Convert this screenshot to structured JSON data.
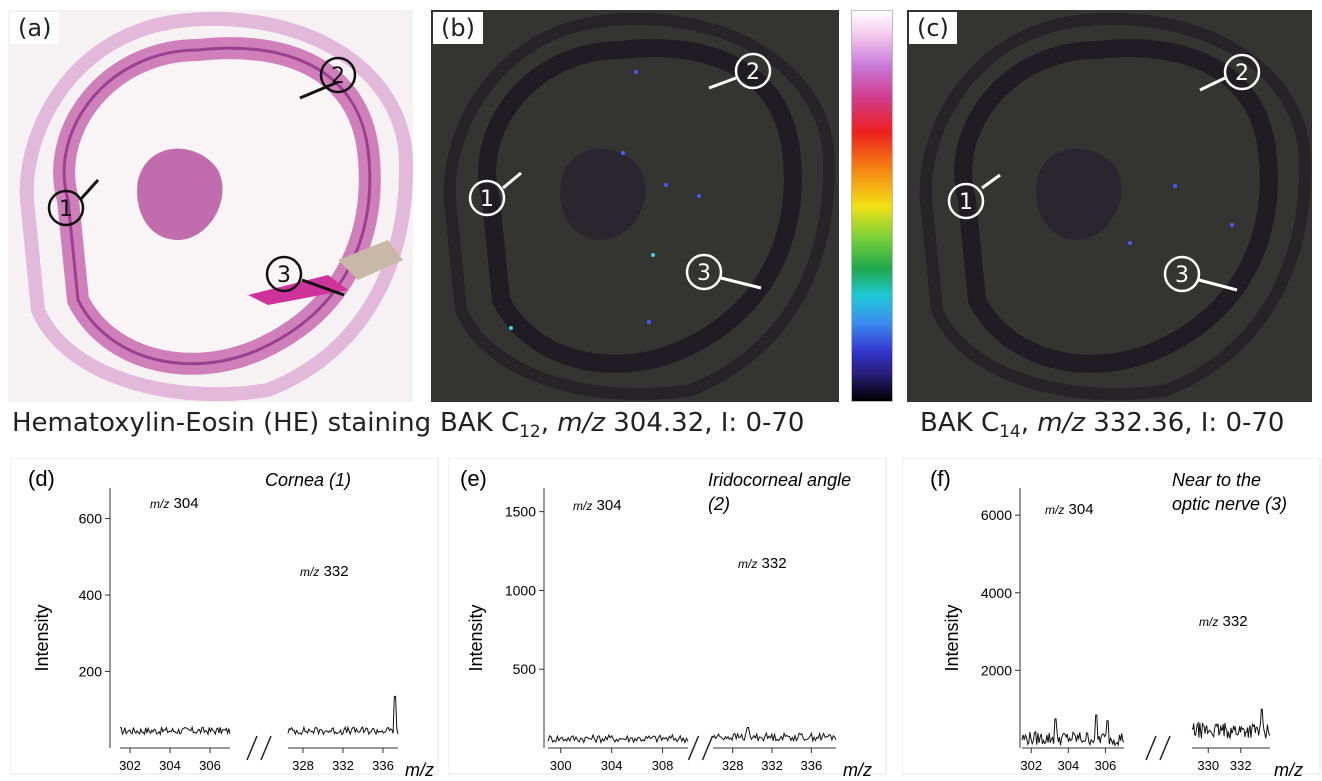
{
  "panels": {
    "a": {
      "label": "(a)",
      "caption": "Hematoxylin-Eosin (HE) staining"
    },
    "b": {
      "label": "(b)",
      "caption_pre": "BAK C",
      "caption_sub": "12",
      "caption_mz": "m/z",
      "caption_post": " 304.32, I: 0-70"
    },
    "c": {
      "label": "(c)",
      "caption_pre": "BAK C",
      "caption_sub": "14",
      "caption_mz": "m/z",
      "caption_post": " 332.36, I: 0-70"
    }
  },
  "regions": [
    "1",
    "2",
    "3"
  ],
  "colorbar": {
    "colors": [
      "#ffffff",
      "#c87ad8",
      "#ee2020",
      "#f3e013",
      "#1ea84a",
      "#1ec8d6",
      "#3338d0",
      "#000000"
    ]
  },
  "chart_data": [
    {
      "type": "line",
      "panel": "(d)",
      "annotation": "Cornea (1)",
      "ylabel": "Intensity",
      "xlabel": "m/z",
      "yticks": [
        200,
        400,
        600
      ],
      "ylim": [
        0,
        680
      ],
      "peak_labels": [
        {
          "prefix": "m/z",
          "text": " 304"
        },
        {
          "prefix": "m/z",
          "text": " 332"
        }
      ],
      "segments": [
        {
          "xticks": [
            "302",
            "304",
            "306"
          ],
          "xlim": [
            301.5,
            307.0
          ],
          "baseline": 45,
          "noise": 10,
          "spikes": []
        },
        {
          "xticks": [
            "328",
            "332",
            "336"
          ],
          "xlim": [
            326.5,
            337.5
          ],
          "baseline": 45,
          "noise": 10,
          "spikes": [
            {
              "x": 337.2,
              "y": 135
            }
          ]
        }
      ]
    },
    {
      "type": "line",
      "panel": "(e)",
      "annotation": "Iridocorneal angle (2)",
      "ylabel": "Intensity",
      "xlabel": "m/z",
      "yticks": [
        500,
        1000,
        1500
      ],
      "ylim": [
        0,
        1650
      ],
      "peak_labels": [
        {
          "prefix": "m/z",
          "text": " 304"
        },
        {
          "prefix": "m/z",
          "text": " 332"
        }
      ],
      "segments": [
        {
          "xticks": [
            "300",
            "304",
            "308"
          ],
          "xlim": [
            299.0,
            310.0
          ],
          "baseline": 60,
          "noise": 25,
          "spikes": []
        },
        {
          "xticks": [
            "328",
            "332",
            "336"
          ],
          "xlim": [
            326.0,
            338.5
          ],
          "baseline": 70,
          "noise": 25,
          "spikes": [
            {
              "x": 329.5,
              "y": 130
            }
          ]
        }
      ]
    },
    {
      "type": "line",
      "panel": "(f)",
      "annotation": "Near to the optic nerve (3)",
      "ylabel": "Intensity",
      "xlabel": "m/z",
      "yticks": [
        2000,
        4000,
        6000
      ],
      "ylim": [
        0,
        6700
      ],
      "peak_labels": [
        {
          "prefix": "m/z",
          "text": " 304"
        },
        {
          "prefix": "m/z",
          "text": " 332"
        }
      ],
      "segments": [
        {
          "xticks": [
            "302",
            "304",
            "306"
          ],
          "xlim": [
            301.5,
            307.0
          ],
          "baseline": 250,
          "noise": 180,
          "spikes": [
            {
              "x": 303.3,
              "y": 750
            },
            {
              "x": 305.5,
              "y": 850
            },
            {
              "x": 306.1,
              "y": 700
            }
          ]
        },
        {
          "xticks": [
            "330",
            "332"
          ],
          "xlim": [
            329.0,
            333.8
          ],
          "baseline": 450,
          "noise": 200,
          "spikes": [
            {
              "x": 333.3,
              "y": 1000
            }
          ]
        }
      ]
    }
  ]
}
